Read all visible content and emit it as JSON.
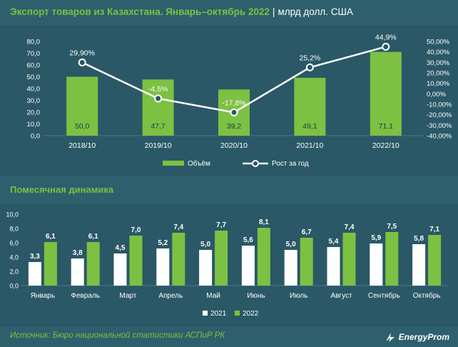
{
  "header": {
    "title": "Экспорт товаров из Казахстана. Январь–октябрь 2022",
    "separator": "|",
    "unit": "млрд долл. США"
  },
  "section2": {
    "title": "Помесячная динамика"
  },
  "footer": {
    "source": "Источник: Бюро национальной статистики АСПиР РК",
    "brand": "EnergyProm"
  },
  "colors": {
    "bar_green": "#7cc142",
    "bar_white": "#ffffff",
    "line": "#ffffff",
    "text": "#ffffff",
    "gridline": "#4a7a86"
  },
  "chart_data": [
    {
      "type": "bar",
      "categories": [
        "2018/10",
        "2019/10",
        "2020/10",
        "2021/10",
        "2022/10"
      ],
      "series": [
        {
          "name": "Объём",
          "values": [
            50.0,
            47.7,
            39.2,
            49.1,
            71.1
          ],
          "labels": [
            "50,0",
            "47,7",
            "39,2",
            "49,1",
            "71,1"
          ],
          "axis": "left"
        },
        {
          "name": "Рост за год",
          "type": "line",
          "values": [
            29.9,
            -4.5,
            -17.8,
            25.2,
            44.9
          ],
          "labels": [
            "29,90%",
            "-4,5%",
            "-17,8%",
            "25,2%",
            "44,9%"
          ],
          "axis": "right"
        }
      ],
      "ylim": [
        0,
        80
      ],
      "y_ticks": [
        "0,0",
        "10,0",
        "20,0",
        "30,0",
        "40,0",
        "50,0",
        "60,0",
        "70,0",
        "80,0"
      ],
      "y2lim": [
        -40,
        50
      ],
      "y2_ticks": [
        "-40,00%",
        "-30,00%",
        "-20,00%",
        "-10,00%",
        "0,00%",
        "10,00%",
        "20,00%",
        "30,00%",
        "40,00%",
        "50,00%"
      ],
      "legend": [
        "Объём",
        "Рост за год"
      ],
      "legend_position": "bottom"
    },
    {
      "type": "bar",
      "categories": [
        "Январь",
        "Февраль",
        "Март",
        "Апрель",
        "Май",
        "Июнь",
        "Июль",
        "Август",
        "Сентябрь",
        "Октябрь"
      ],
      "series": [
        {
          "name": "2021",
          "values": [
            3.3,
            3.8,
            4.5,
            5.2,
            5.0,
            5.6,
            5.0,
            5.4,
            5.9,
            5.8
          ],
          "labels": [
            "3,3",
            "3,8",
            "4,5",
            "5,2",
            "5,0",
            "5,6",
            "5,0",
            "5,4",
            "5,9",
            "5,8"
          ]
        },
        {
          "name": "2022",
          "values": [
            6.1,
            6.1,
            7.0,
            7.4,
            7.7,
            8.1,
            6.7,
            7.4,
            7.5,
            7.1
          ],
          "labels": [
            "6,1",
            "6,1",
            "7,0",
            "7,4",
            "7,7",
            "8,1",
            "6,7",
            "7,4",
            "7,5",
            "7,1"
          ]
        }
      ],
      "ylim": [
        0,
        10
      ],
      "y_ticks": [
        "0,0",
        "2,0",
        "4,0",
        "6,0",
        "8,0",
        "10,0"
      ],
      "legend": [
        "2021",
        "2022"
      ],
      "legend_position": "bottom"
    }
  ]
}
